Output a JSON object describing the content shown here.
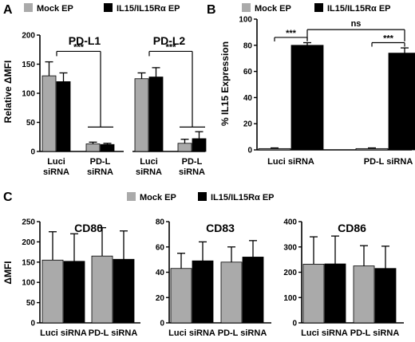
{
  "colors": {
    "mock": "#aaaaaa",
    "il15": "#000000"
  },
  "chart_data": [
    {
      "panel": "A",
      "type": "bar",
      "legend": [
        "Mock EP",
        "IL15/IL15Rα EP"
      ],
      "ylabel": "Relative ΔMFI",
      "ylim": [
        0,
        200
      ],
      "yticks": [
        "0",
        "50",
        "100",
        "150",
        "200"
      ],
      "groups": [
        {
          "title": "PD-L1",
          "categories": [
            "Luci siRNA",
            "PD-L siRNA"
          ]
        },
        {
          "title": "PD-L2",
          "categories": [
            "Luci siRNA",
            "PD-L siRNA"
          ]
        }
      ],
      "series": [
        {
          "name": "Mock EP",
          "values": [
            130,
            13,
            125,
            14
          ],
          "errors": [
            24,
            3,
            10,
            7
          ]
        },
        {
          "name": "IL15/IL15Rα EP",
          "values": [
            120,
            12,
            128,
            22
          ],
          "errors": [
            15,
            2,
            16,
            12
          ]
        }
      ],
      "annotations": [
        "***",
        "***"
      ]
    },
    {
      "panel": "B",
      "type": "bar",
      "legend": [
        "Mock EP",
        "IL15/IL15Rα EP"
      ],
      "ylabel": "% IL15 Expression",
      "ylim": [
        0,
        100
      ],
      "yticks": [
        "0",
        "20",
        "40",
        "60",
        "80",
        "100"
      ],
      "categories": [
        "Luci siRNA",
        "PD-L siRNA"
      ],
      "series": [
        {
          "name": "Mock EP",
          "values": [
            1,
            1
          ],
          "errors": [
            0.5,
            0.5
          ]
        },
        {
          "name": "IL15/IL15Rα EP",
          "values": [
            80,
            74
          ],
          "errors": [
            2,
            4
          ]
        }
      ],
      "annotations": [
        "***",
        "***",
        "ns"
      ]
    },
    {
      "panel": "C",
      "type": "bar",
      "legend": [
        "Mock EP",
        "IL15/IL15Rα EP"
      ],
      "ylabel": "ΔMFI",
      "subplots": [
        {
          "title": "CD80",
          "ylim": [
            0,
            250
          ],
          "yticks": [
            "0",
            "50",
            "100",
            "150",
            "200",
            "250"
          ],
          "categories": [
            "Luci siRNA",
            "PD-L siRNA"
          ],
          "series": [
            {
              "name": "Mock EP",
              "values": [
                155,
                165
              ],
              "errors": [
                70,
                70
              ]
            },
            {
              "name": "IL15/IL15Rα EP",
              "values": [
                152,
                157
              ],
              "errors": [
                68,
                70
              ]
            }
          ]
        },
        {
          "title": "CD83",
          "ylim": [
            0,
            80
          ],
          "yticks": [
            "0",
            "20",
            "40",
            "60",
            "80"
          ],
          "categories": [
            "Luci siRNA",
            "PD-L siRNA"
          ],
          "series": [
            {
              "name": "Mock EP",
              "values": [
                43,
                48
              ],
              "errors": [
                12,
                12
              ]
            },
            {
              "name": "IL15/IL15Rα EP",
              "values": [
                49,
                52
              ],
              "errors": [
                15,
                13
              ]
            }
          ]
        },
        {
          "title": "CD86",
          "ylim": [
            0,
            400
          ],
          "yticks": [
            "0",
            "100",
            "200",
            "300",
            "400"
          ],
          "categories": [
            "Luci siRNA",
            "PD-L siRNA"
          ],
          "series": [
            {
              "name": "Mock EP",
              "values": [
                232,
                225
              ],
              "errors": [
                108,
                80
              ]
            },
            {
              "name": "IL15/IL15Rα EP",
              "values": [
                233,
                215
              ],
              "errors": [
                110,
                88
              ]
            }
          ]
        }
      ]
    }
  ]
}
